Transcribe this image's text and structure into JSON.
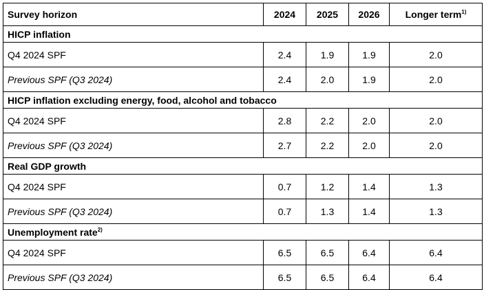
{
  "header": {
    "horizon": "Survey horizon",
    "y2024": "2024",
    "y2025": "2025",
    "y2026": "2026",
    "longer": "Longer term",
    "longer_sup": "1)"
  },
  "sections": [
    {
      "title": "HICP inflation",
      "title_sup": "",
      "rows": [
        {
          "label": "Q4 2024 SPF",
          "v2024": "2.4",
          "v2025": "1.9",
          "v2026": "1.9",
          "longer": "2.0"
        },
        {
          "label": "Previous SPF (Q3 2024)",
          "v2024": "2.4",
          "v2025": "2.0",
          "v2026": "1.9",
          "longer": "2.0"
        }
      ]
    },
    {
      "title": "HICP inflation excluding energy, food, alcohol and tobacco",
      "title_sup": "",
      "rows": [
        {
          "label": "Q4 2024 SPF",
          "v2024": "2.8",
          "v2025": "2.2",
          "v2026": "2.0",
          "longer": "2.0"
        },
        {
          "label": "Previous SPF (Q3 2024)",
          "v2024": "2.7",
          "v2025": "2.2",
          "v2026": "2.0",
          "longer": "2.0"
        }
      ]
    },
    {
      "title": "Real GDP growth",
      "title_sup": "",
      "rows": [
        {
          "label": "Q4 2024 SPF",
          "v2024": "0.7",
          "v2025": "1.2",
          "v2026": "1.4",
          "longer": "1.3"
        },
        {
          "label": "Previous SPF (Q3 2024)",
          "v2024": "0.7",
          "v2025": "1.3",
          "v2026": "1.4",
          "longer": "1.3"
        }
      ]
    },
    {
      "title": "Unemployment rate",
      "title_sup": "2)",
      "rows": [
        {
          "label": "Q4 2024 SPF",
          "v2024": "6.5",
          "v2025": "6.5",
          "v2026": "6.4",
          "longer": "6.4"
        },
        {
          "label": "Previous SPF (Q3 2024)",
          "v2024": "6.5",
          "v2025": "6.5",
          "v2026": "6.4",
          "longer": "6.4"
        }
      ]
    }
  ]
}
